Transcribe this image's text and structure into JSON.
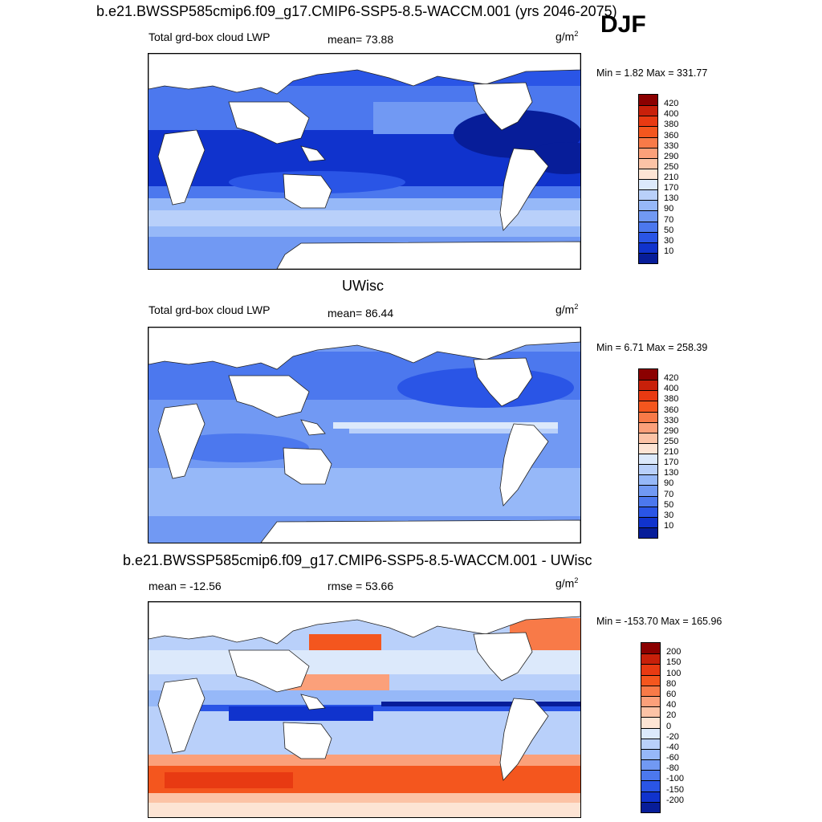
{
  "header": {
    "title": "b.e21.BWSSP585cmip6.f09_g17.CMIP6-SSP5-8.5-WACCM.001 (yrs 2046-2075)",
    "season": "DJF"
  },
  "panels": [
    {
      "variable": "Total grd-box cloud LWP",
      "stat": "mean=  73.88",
      "units": "g/m",
      "units_sup": "2",
      "minmax": "Min =   1.82 Max = 331.77",
      "colorbar": {
        "labels": [
          "420",
          "400",
          "380",
          "360",
          "330",
          "290",
          "250",
          "210",
          "170",
          "130",
          "90",
          "70",
          "50",
          "30",
          "10"
        ],
        "colors": [
          "#8b0000",
          "#c8200a",
          "#e83a12",
          "#f4561e",
          "#f87a48",
          "#fba07a",
          "#fcc3a6",
          "#fde4d4",
          "#dce9fb",
          "#b9d0fa",
          "#96b8f8",
          "#7199f3",
          "#4c78ee",
          "#2a55e6",
          "#1033cd",
          "#071d99"
        ]
      }
    },
    {
      "title": "UWisc",
      "variable": "Total grd-box cloud LWP",
      "stat": "mean=  86.44",
      "units": "g/m",
      "units_sup": "2",
      "minmax": "Min =   6.71 Max = 258.39",
      "colorbar": {
        "labels": [
          "420",
          "400",
          "380",
          "360",
          "330",
          "290",
          "250",
          "210",
          "170",
          "130",
          "90",
          "70",
          "50",
          "30",
          "10"
        ],
        "colors": [
          "#8b0000",
          "#c8200a",
          "#e83a12",
          "#f4561e",
          "#f87a48",
          "#fba07a",
          "#fcc3a6",
          "#fde4d4",
          "#dce9fb",
          "#b9d0fa",
          "#96b8f8",
          "#7199f3",
          "#4c78ee",
          "#2a55e6",
          "#1033cd",
          "#071d99"
        ]
      }
    },
    {
      "title": "b.e21.BWSSP585cmip6.f09_g17.CMIP6-SSP5-8.5-WACCM.001 - UWisc",
      "variable": "mean = -12.56",
      "stat": "rmse =  53.66",
      "units": "g/m",
      "units_sup": "2",
      "minmax": "Min = -153.70 Max = 165.96",
      "colorbar": {
        "labels": [
          "200",
          "150",
          "100",
          "80",
          "60",
          "40",
          "20",
          "0",
          "-20",
          "-40",
          "-60",
          "-80",
          "-100",
          "-150",
          "-200"
        ],
        "colors": [
          "#8b0000",
          "#c8200a",
          "#e83a12",
          "#f4561e",
          "#f87a48",
          "#fba07a",
          "#fcc3a6",
          "#fde4d4",
          "#dce9fb",
          "#b9d0fa",
          "#96b8f8",
          "#7199f3",
          "#4c78ee",
          "#2a55e6",
          "#1033cd",
          "#071d99"
        ]
      }
    }
  ]
}
